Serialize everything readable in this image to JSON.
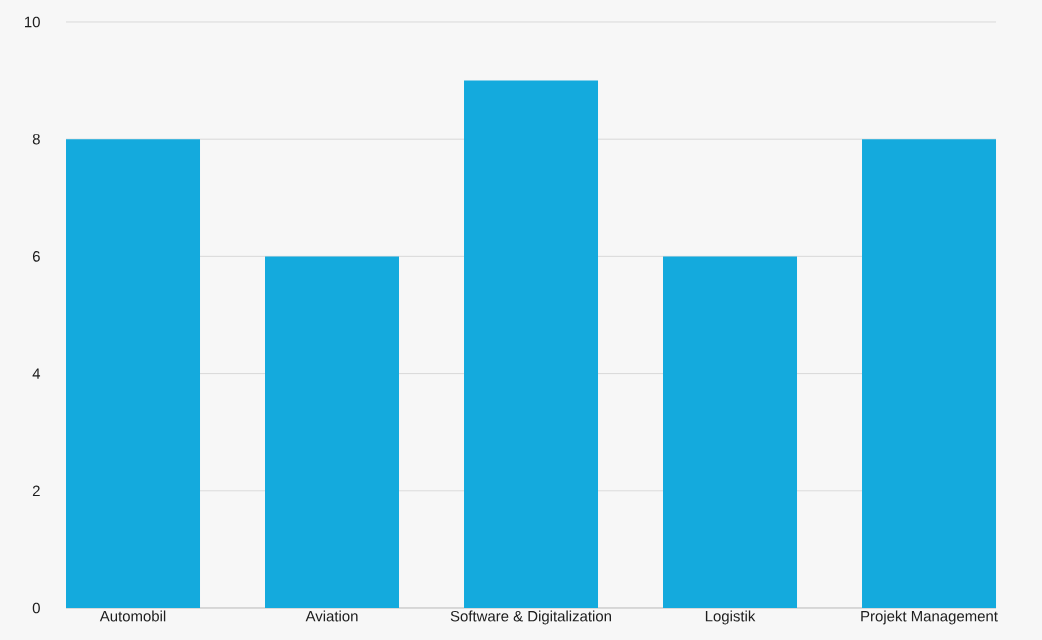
{
  "chart_data": {
    "type": "bar",
    "categories": [
      "Automobil",
      "Aviation",
      "Software & Digitalization",
      "Logistik",
      "Projekt Management"
    ],
    "values": [
      8,
      6,
      9,
      6,
      8
    ],
    "color": "#14aadd",
    "ylim": [
      0,
      10
    ],
    "yticks": [
      0,
      2,
      4,
      6,
      8,
      10
    ],
    "grid": "y"
  }
}
